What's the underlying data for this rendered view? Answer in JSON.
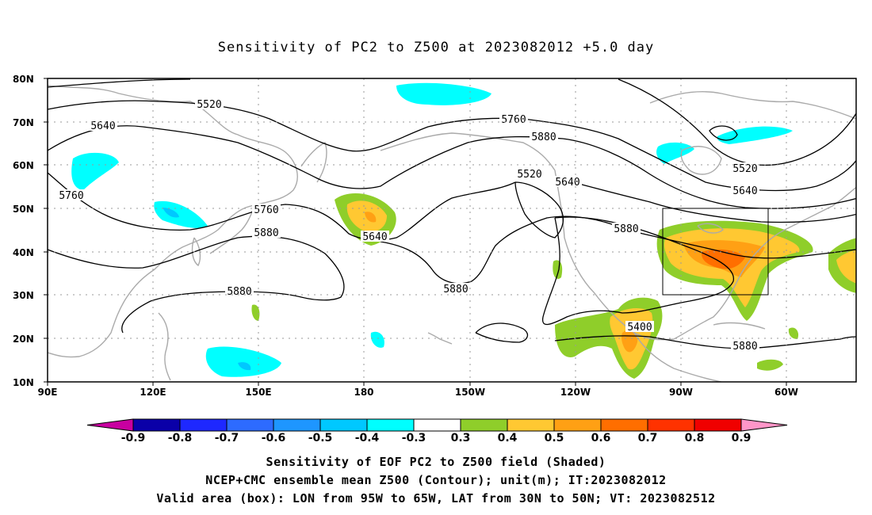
{
  "title": "Sensitivity of PC2 to Z500 at 2023082012 +5.0 day",
  "axes": {
    "x_ticks": [
      "90E",
      "120E",
      "150E",
      "180",
      "150W",
      "120W",
      "90W",
      "60W"
    ],
    "y_ticks": [
      "10N",
      "20N",
      "30N",
      "40N",
      "50N",
      "60N",
      "70N",
      "80N"
    ],
    "lon_range_deg_east": [
      90,
      315
    ],
    "lat_range": [
      10,
      80
    ],
    "grid": "dotted"
  },
  "contour_labels": [
    "5520",
    "5640",
    "5760",
    "5880",
    "5520",
    "5640",
    "5760",
    "5760",
    "5640",
    "5880",
    "5880",
    "5880",
    "5880",
    "5400",
    "5520",
    "5640",
    "5880"
  ],
  "valid_box": {
    "lon_w": -95,
    "lon_e": -65,
    "lat_s": 30,
    "lat_n": 50
  },
  "colorbar": {
    "labels": [
      "-0.9",
      "-0.8",
      "-0.7",
      "-0.6",
      "-0.5",
      "-0.4",
      "-0.3",
      "0.3",
      "0.4",
      "0.5",
      "0.6",
      "0.7",
      "0.8",
      "0.9"
    ],
    "colors": [
      "#0a00a8",
      "#1e28ff",
      "#2d6bff",
      "#1e96ff",
      "#00c8ff",
      "#00ffff",
      "#ffffff",
      "#8fce2a",
      "#ffc832",
      "#ffa014",
      "#ff6e00",
      "#ff3200",
      "#f00000"
    ],
    "low_end_color": "#c800a0",
    "high_end_color": "#ff96c8"
  },
  "footer": {
    "line1": "Sensitivity of EOF PC2 to Z500 field (Shaded)",
    "line2": "NCEP+CMC ensemble mean Z500 (Contour); unit(m); IT:2023082012",
    "line3": "Valid area (box): LON from 95W to 65W, LAT from 30N to 50N; VT: 2023082512"
  }
}
